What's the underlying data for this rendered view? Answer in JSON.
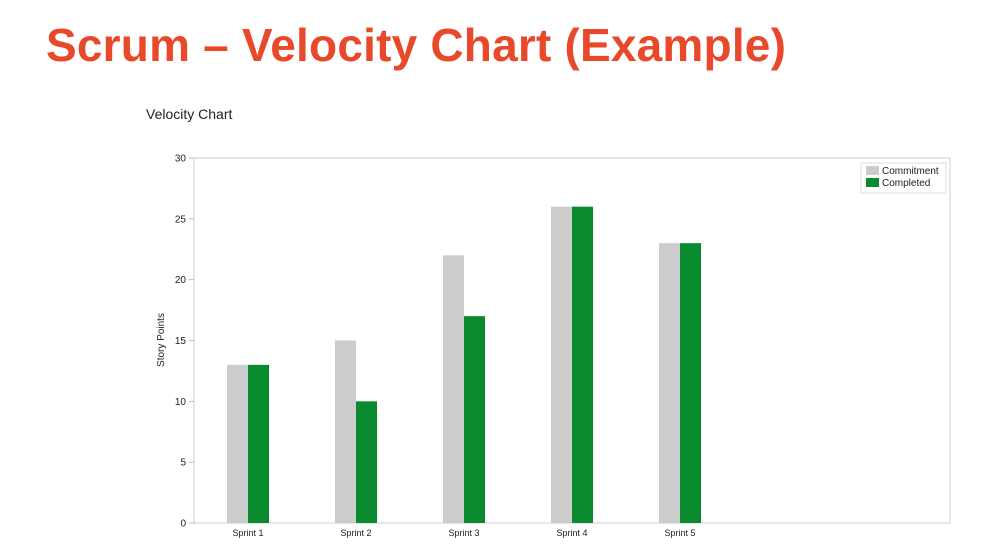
{
  "slide": {
    "title": "Scrum – Velocity Chart (Example)"
  },
  "chart_data": {
    "type": "bar",
    "title": "Velocity Chart",
    "xlabel": "",
    "ylabel": "Story Points",
    "ylim": [
      0,
      30
    ],
    "yticks": [
      0,
      5,
      10,
      15,
      20,
      25,
      30
    ],
    "categories": [
      "Sprint 1",
      "Sprint 2",
      "Sprint 3",
      "Sprint 4",
      "Sprint 5"
    ],
    "series": [
      {
        "name": "Commitment",
        "values": [
          13,
          15,
          22,
          26,
          23
        ],
        "color": "#cccccc"
      },
      {
        "name": "Completed",
        "values": [
          13,
          10,
          17,
          26,
          23
        ],
        "color": "#0a8a2e"
      }
    ],
    "legend": "top-right",
    "grid": false
  }
}
